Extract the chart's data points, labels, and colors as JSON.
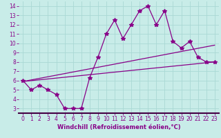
{
  "bg_color": "#c8ece8",
  "grid_color": "#aad8d4",
  "line_color": "#880088",
  "xlabel": "Windchill (Refroidissement éolien,°C)",
  "xlim": [
    -0.5,
    23.5
  ],
  "ylim": [
    2.5,
    14.5
  ],
  "xticks": [
    0,
    1,
    2,
    3,
    4,
    5,
    6,
    7,
    8,
    9,
    10,
    11,
    12,
    13,
    14,
    15,
    16,
    17,
    18,
    19,
    20,
    21,
    22,
    23
  ],
  "yticks": [
    3,
    4,
    5,
    6,
    7,
    8,
    9,
    10,
    11,
    12,
    13,
    14
  ],
  "line1_x": [
    0,
    1,
    2,
    3,
    4,
    5,
    6,
    7,
    8,
    9,
    10,
    11,
    12,
    13,
    14,
    15,
    16,
    17,
    18,
    19,
    20,
    21,
    22,
    23
  ],
  "line1_y": [
    6.0,
    5.0,
    5.5,
    5.0,
    4.5,
    3.0,
    3.0,
    3.0,
    6.3,
    8.5,
    11.0,
    12.5,
    10.5,
    12.0,
    13.5,
    14.0,
    12.0,
    13.5,
    10.2,
    9.5,
    10.2,
    8.5,
    8.0,
    8.0
  ],
  "line2_x": [
    0,
    23
  ],
  "line2_y": [
    5.9,
    8.0
  ],
  "line3_x": [
    0,
    23
  ],
  "line3_y": [
    5.9,
    9.8
  ],
  "marker": "*",
  "markersize": 4,
  "linewidth": 0.9,
  "xlabel_fontsize": 6,
  "tick_fontsize": 5.5,
  "spine_color": "#880088",
  "bottom_spine_color": "#440044"
}
